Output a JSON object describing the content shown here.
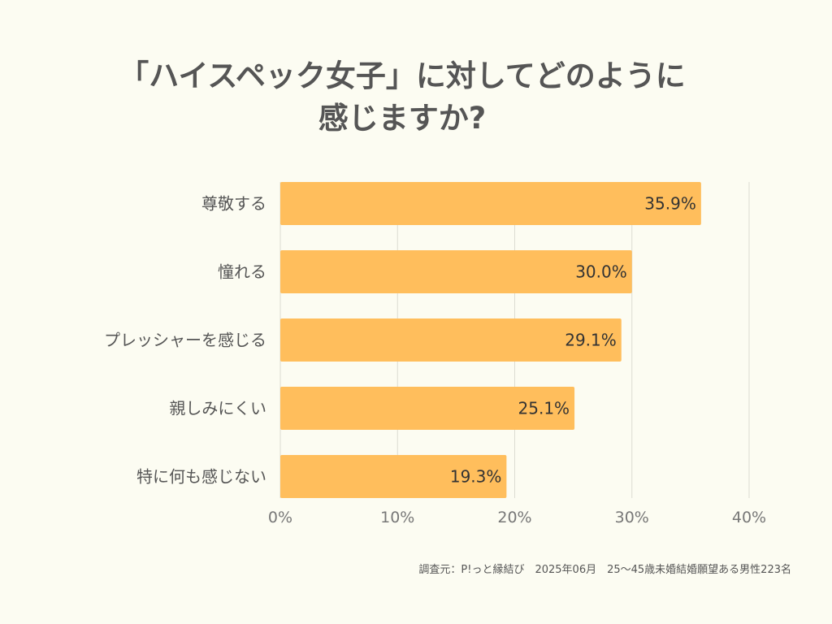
{
  "title": {
    "line1": "「ハイスペック女子」に対してどのように",
    "line2": "感じますか?"
  },
  "footer": "調査元：P!っと縁結び　2025年06月　25〜45歳未婚結婚願望ある男性223名",
  "chart_data": {
    "type": "bar",
    "orientation": "horizontal",
    "categories": [
      "尊敬する",
      "憧れる",
      "プレッシャーを感じる",
      "親しみにくい",
      "特に何も感じない"
    ],
    "values": [
      35.9,
      30.0,
      29.1,
      25.1,
      19.3
    ],
    "value_labels": [
      "35.9%",
      "30.0%",
      "29.1%",
      "25.1%",
      "19.3%"
    ],
    "xlim": [
      0,
      40
    ],
    "x_ticks": [
      0,
      10,
      20,
      30,
      40
    ],
    "x_tick_labels": [
      "0%",
      "10%",
      "20%",
      "30%",
      "40%"
    ],
    "grid": true,
    "bar_color": "#ffbe5c"
  }
}
